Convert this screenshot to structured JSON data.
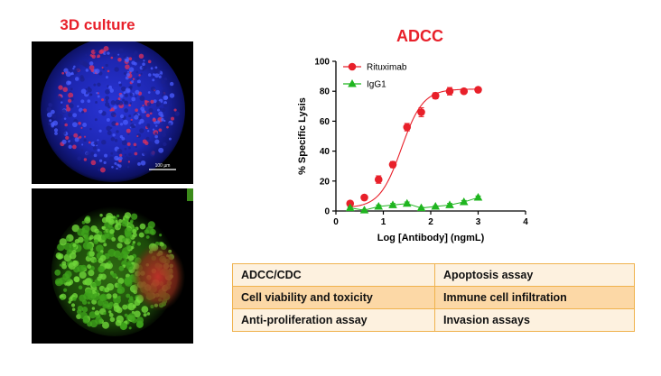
{
  "left_panel": {
    "title": "3D culture",
    "scale_bar_label": "100 µm"
  },
  "chart_title": "ADCC",
  "chart_data": {
    "type": "scatter",
    "title": "ADCC",
    "xlabel": "Log [Antibody] (ngmL)",
    "ylabel": "% Specific Lysis",
    "xlim": [
      0,
      4
    ],
    "ylim": [
      0,
      100
    ],
    "xticks": [
      0,
      1,
      2,
      3,
      4
    ],
    "yticks": [
      0,
      20,
      40,
      60,
      80,
      100
    ],
    "legend_position": "top-left",
    "series": [
      {
        "name": "Rituximab",
        "color": "#e8202a",
        "marker": "circle",
        "fit_curve": true,
        "x": [
          0.3,
          0.6,
          0.9,
          1.2,
          1.5,
          1.8,
          2.1,
          2.4,
          2.7,
          3.0
        ],
        "y": [
          5,
          9,
          21,
          31,
          56,
          66,
          77,
          80,
          80,
          81
        ],
        "error": [
          1,
          1.5,
          2.5,
          2,
          2.5,
          3,
          2,
          2.5,
          1.5,
          1.5
        ]
      },
      {
        "name": "IgG1",
        "color": "#1fb51f",
        "marker": "triangle",
        "fit_curve": false,
        "x": [
          0.3,
          0.6,
          0.9,
          1.2,
          1.5,
          1.8,
          2.1,
          2.4,
          2.7,
          3.0
        ],
        "y": [
          2,
          0.5,
          3,
          4,
          5,
          2,
          3,
          4,
          6,
          9
        ],
        "error": [
          0.5,
          0.5,
          1,
          1,
          1,
          0.5,
          0.5,
          1,
          1,
          1
        ]
      }
    ]
  },
  "assays": [
    [
      "ADCC/CDC",
      "Apoptosis assay"
    ],
    [
      "Cell viability and toxicity",
      "Immune cell infiltration"
    ],
    [
      "Anti-proliferation assay",
      "Invasion assays"
    ]
  ],
  "colors": {
    "title_red": "#e8202a",
    "table_border": "#f0b24d",
    "row_light": "#fdf1df",
    "row_dark": "#fcd8a6"
  }
}
